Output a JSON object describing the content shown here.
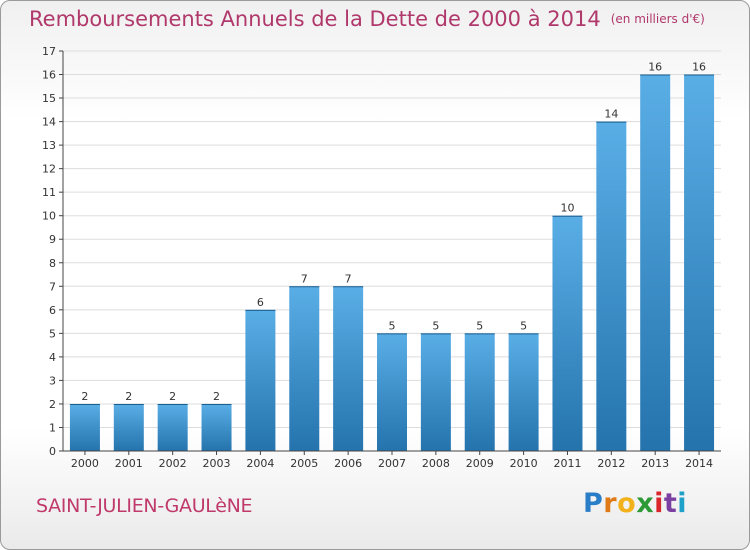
{
  "title": "Remboursements Annuels de la Dette de 2000 à 2014",
  "unit": "(en milliers d'€)",
  "place": "SAINT-JULIEN-GAULèNE",
  "logo": {
    "letters": [
      "P",
      "r",
      "o",
      "x",
      "i",
      "t",
      "i"
    ],
    "colors": [
      "#2a7ec8",
      "#e07a16",
      "#f2b21c",
      "#2e9a36",
      "#d9262c",
      "#7a3fa0",
      "#1fa0c8"
    ]
  },
  "colors": {
    "title": "#b0386b",
    "bar_top": "#5aaee6",
    "bar_bottom": "#2473ad",
    "axis": "#444444",
    "grid": "#dddddd"
  },
  "chart_data": {
    "type": "bar",
    "title": "Remboursements Annuels de la Dette de 2000 à 2014",
    "unit": "(en milliers d'€)",
    "categories": [
      "2000",
      "2001",
      "2002",
      "2003",
      "2004",
      "2005",
      "2006",
      "2007",
      "2008",
      "2009",
      "2010",
      "2011",
      "2012",
      "2013",
      "2014"
    ],
    "values": [
      2,
      2,
      2,
      2,
      6,
      7,
      7,
      5,
      5,
      5,
      5,
      10,
      14,
      16,
      16
    ],
    "ylim": [
      0,
      17
    ],
    "yticks": [
      0,
      1,
      2,
      3,
      4,
      5,
      6,
      7,
      8,
      9,
      10,
      11,
      12,
      13,
      14,
      15,
      16,
      17
    ],
    "grid": true,
    "legend": "none"
  }
}
